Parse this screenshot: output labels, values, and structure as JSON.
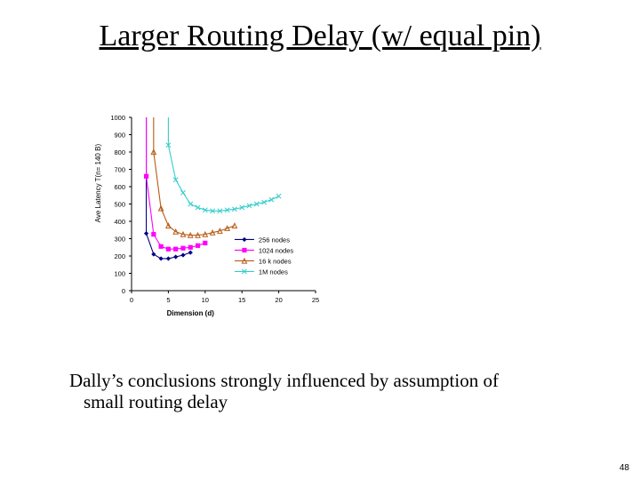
{
  "slide": {
    "title": "Larger Routing Delay (w/ equal pin)",
    "body_line1": "Dally’s conclusions strongly influenced by assumption of",
    "body_line2": "small routing delay",
    "page_number": "48"
  },
  "chart_data": {
    "type": "line",
    "xlabel": "Dimension (d)",
    "ylabel": "Ave Latency T(n= 140 B)",
    "xlim": [
      0,
      25
    ],
    "ylim": [
      0,
      1000
    ],
    "xticks": [
      0,
      5,
      10,
      15,
      20,
      25
    ],
    "yticks": [
      0,
      100,
      200,
      300,
      400,
      500,
      600,
      700,
      800,
      900,
      1000
    ],
    "grid": false,
    "legend_position": "bottom-right",
    "series": [
      {
        "name": "256 nodes",
        "color": "#000080",
        "marker": "diamond",
        "x": [
          2,
          3,
          4,
          5,
          6,
          7,
          8
        ],
        "y": [
          330,
          210,
          185,
          185,
          195,
          205,
          220
        ]
      },
      {
        "name": "1024 nodes",
        "color": "#ff00ff",
        "marker": "square",
        "x": [
          2,
          3,
          4,
          5,
          6,
          7,
          8,
          9,
          10
        ],
        "y": [
          660,
          325,
          255,
          240,
          240,
          245,
          250,
          260,
          275
        ]
      },
      {
        "name": "16 k nodes",
        "color": "#b85a14",
        "marker": "triangle",
        "x": [
          3,
          4,
          5,
          6,
          7,
          8,
          9,
          10,
          11,
          12,
          13,
          14
        ],
        "y": [
          800,
          475,
          375,
          340,
          325,
          320,
          320,
          325,
          335,
          345,
          360,
          375
        ]
      },
      {
        "name": "1M nodes",
        "color": "#33cccc",
        "marker": "x",
        "x": [
          5,
          6,
          7,
          8,
          9,
          10,
          11,
          12,
          13,
          14,
          15,
          16,
          17,
          18,
          19,
          20
        ],
        "y": [
          840,
          640,
          565,
          500,
          480,
          465,
          460,
          460,
          465,
          470,
          480,
          490,
          500,
          510,
          525,
          545
        ]
      }
    ]
  }
}
